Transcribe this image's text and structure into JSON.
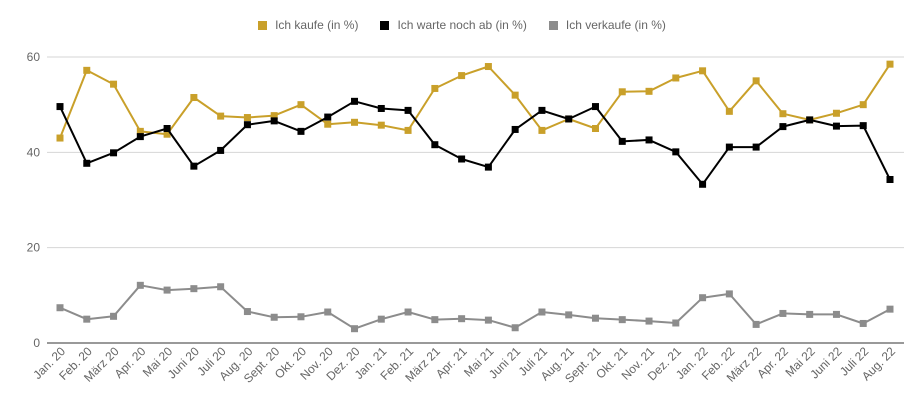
{
  "chart_data": {
    "type": "line",
    "title": "",
    "xlabel": "",
    "ylabel": "",
    "ylim": [
      0,
      60
    ],
    "yticks": [
      0,
      20,
      40,
      60
    ],
    "grid": true,
    "legend_position": "top-center",
    "categories": [
      "Jan. 20",
      "Feb. 20",
      "März 20",
      "Apr. 20",
      "Mai 20",
      "Juni 20",
      "Juli 20",
      "Aug. 20",
      "Sept. 20",
      "Okt. 20",
      "Nov. 20",
      "Dez. 20",
      "Jan. 21",
      "Feb. 21",
      "März 21",
      "Apr. 21",
      "Mai 21",
      "Juni 21",
      "Juli 21",
      "Aug. 21",
      "Sept. 21",
      "Okt. 21",
      "Nov. 21",
      "Dez. 21",
      "Jan. 22",
      "Feb. 22",
      "März 22",
      "Apr. 22",
      "Mai 22",
      "Juni 22",
      "Juli 22",
      "Aug. 22"
    ],
    "series": [
      {
        "name": "Ich kaufe (in %)",
        "color": "#c9a02a",
        "values": [
          43.0,
          57.2,
          54.3,
          44.4,
          43.8,
          51.5,
          47.6,
          47.3,
          47.7,
          50.0,
          45.9,
          46.3,
          45.7,
          44.6,
          53.4,
          56.1,
          58.0,
          52.0,
          44.6,
          47.0,
          45.0,
          52.7,
          52.8,
          55.6,
          57.1,
          48.6,
          55.0,
          48.1,
          46.8,
          48.2,
          50.0,
          58.5
        ]
      },
      {
        "name": "Ich warte noch ab (in %)",
        "color": "#000000",
        "values": [
          49.6,
          37.7,
          39.9,
          43.3,
          45.0,
          37.1,
          40.4,
          45.8,
          46.6,
          44.4,
          47.4,
          50.7,
          49.2,
          48.8,
          41.6,
          38.6,
          36.9,
          44.8,
          48.8,
          47.0,
          49.6,
          42.3,
          42.6,
          40.1,
          33.3,
          41.1,
          41.1,
          45.4,
          46.8,
          45.5,
          45.6,
          34.3
        ]
      },
      {
        "name": "Ich verkaufe (in %)",
        "color": "#8c8c8c",
        "values": [
          7.4,
          5.0,
          5.6,
          12.1,
          11.1,
          11.4,
          11.8,
          6.6,
          5.4,
          5.5,
          6.5,
          3.0,
          5.0,
          6.5,
          4.9,
          5.1,
          4.8,
          3.2,
          6.5,
          5.9,
          5.2,
          4.9,
          4.6,
          4.2,
          9.5,
          10.3,
          3.9,
          6.2,
          6.0,
          6.0,
          4.1,
          7.1
        ]
      }
    ]
  }
}
